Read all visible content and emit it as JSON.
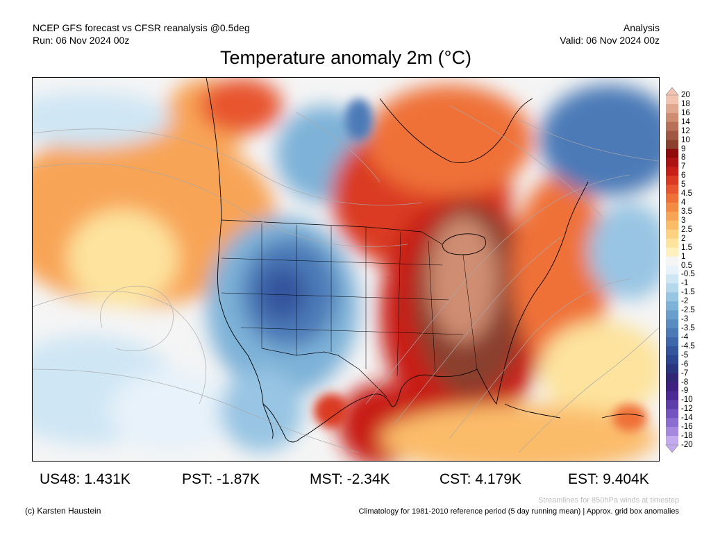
{
  "header": {
    "left_line1": "NCEP GFS forecast vs CFSR reanalysis @0.5deg",
    "left_line2": "Run: 06 Nov 2024 00z",
    "right_line1": "Analysis",
    "right_line2": "Valid: 06 Nov 2024 00z"
  },
  "title": "Temperature anomaly 2m (°C)",
  "colorbar": {
    "labels": [
      "20",
      "18",
      "16",
      "14",
      "12",
      "10",
      "9",
      "8",
      "7",
      "6",
      "5",
      "4.5",
      "4",
      "3.5",
      "3",
      "2.5",
      "2",
      "1.5",
      "1",
      "0.5",
      "-0.5",
      "-1",
      "-1.5",
      "-2",
      "-2.5",
      "-3",
      "-3.5",
      "-4",
      "-4.5",
      "-5",
      "-6",
      "-7",
      "-8",
      "-9",
      "-10",
      "-12",
      "-14",
      "-16",
      "-18",
      "-20"
    ],
    "colors": [
      "#f2c4b0",
      "#e2a88f",
      "#cf8d72",
      "#b87059",
      "#a15842",
      "#8a402d",
      "#900a0a",
      "#ad1212",
      "#c81e18",
      "#da3a22",
      "#e8552e",
      "#ef7138",
      "#f48b44",
      "#f8a456",
      "#fbbc6a",
      "#fcd182",
      "#fde39d",
      "#fef1be",
      "#f5f5f5",
      "#e7f2fa",
      "#cfe6f4",
      "#b5d8ed",
      "#98c5e3",
      "#7eb2d8",
      "#6a9fcd",
      "#5a8cc2",
      "#4c7ab7",
      "#3f67ab",
      "#34559e",
      "#2b4590",
      "#29357f",
      "#302675",
      "#3d2080",
      "#4c2a96",
      "#5e3dab",
      "#7354c0",
      "#8b6dd2",
      "#a688e0",
      "#c4aaee"
    ]
  },
  "stats": [
    {
      "label": "US48: 1.431K"
    },
    {
      "label": "PST: -1.87K"
    },
    {
      "label": "MST: -2.34K"
    },
    {
      "label": "CST: 4.179K"
    },
    {
      "label": "EST: 9.404K"
    }
  ],
  "footer": {
    "credit": "(c) Karsten Haustein",
    "streamlines": "Streamlines for 850hPa winds at timestep",
    "climatology": "Climatology for 1981-2010 reference period (5 day running mean) | Approx. grid box anomalies"
  }
}
